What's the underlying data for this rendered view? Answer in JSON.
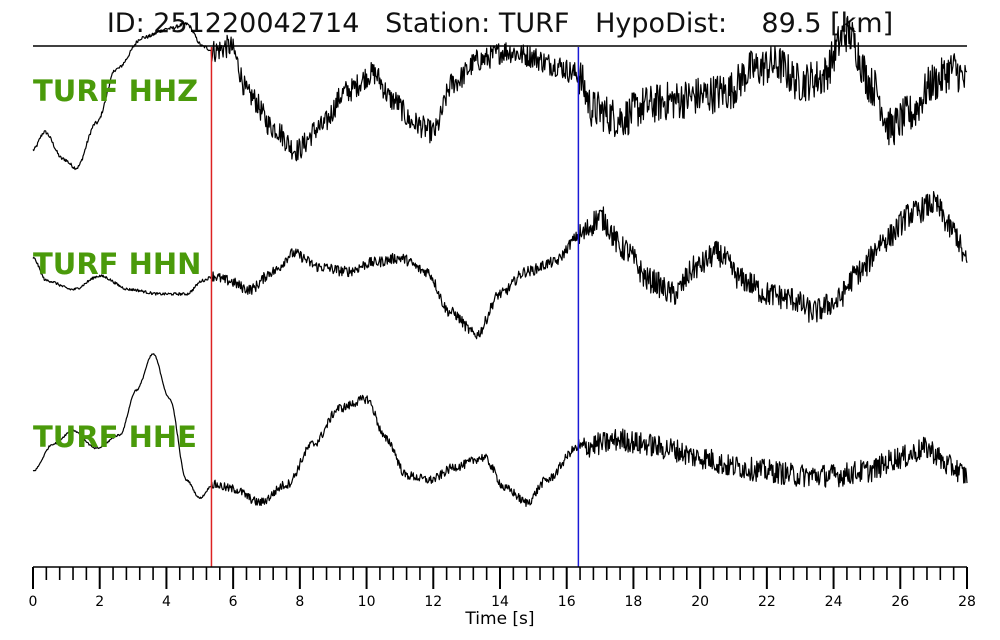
{
  "title": "ID: 251220042714   Station: TURF   HypoDist:    89.5 [km]",
  "colors": {
    "trace": "#000000",
    "p_pick": "#dd2222",
    "s_pick": "#1a1ad6",
    "label": "#4a9a0a"
  },
  "chart_data": {
    "type": "line",
    "title": "ID: 251220042714   Station: TURF   HypoDist:    89.5 [km]",
    "xlabel": "Time [s]",
    "ylabel": "",
    "xlim": [
      0,
      28
    ],
    "xticks": [
      0,
      2,
      4,
      6,
      8,
      10,
      12,
      14,
      16,
      18,
      20,
      22,
      24,
      26,
      28
    ],
    "minor_tick_step": 0.4,
    "grid": false,
    "picks": [
      {
        "time": 5.35,
        "color": "#dd2222"
      },
      {
        "time": 16.35,
        "color": "#1a1ad6"
      }
    ],
    "series": [
      {
        "name": "TURF HHZ",
        "noise_before": 0.02,
        "noise_after_p": 0.13,
        "noise_after_s": 0.22,
        "points": [
          [
            0,
            0.0
          ],
          [
            0.35,
            0.2
          ],
          [
            0.9,
            -0.1
          ],
          [
            1.3,
            -0.2
          ],
          [
            1.9,
            0.3
          ],
          [
            2.5,
            0.9
          ],
          [
            3.3,
            1.25
          ],
          [
            4.1,
            1.35
          ],
          [
            4.6,
            1.4
          ],
          [
            5.1,
            1.15
          ],
          [
            5.4,
            1.1
          ],
          [
            5.9,
            1.15
          ],
          [
            6.5,
            0.6
          ],
          [
            7.2,
            0.25
          ],
          [
            7.9,
            0.0
          ],
          [
            8.6,
            0.25
          ],
          [
            9.4,
            0.65
          ],
          [
            10.2,
            0.85
          ],
          [
            10.8,
            0.55
          ],
          [
            11.4,
            0.3
          ],
          [
            12.0,
            0.2
          ],
          [
            12.6,
            0.75
          ],
          [
            13.4,
            1.0
          ],
          [
            14.2,
            1.1
          ],
          [
            14.8,
            1.05
          ],
          [
            15.6,
            0.95
          ],
          [
            16.3,
            0.85
          ],
          [
            16.8,
            0.45
          ],
          [
            17.6,
            0.35
          ],
          [
            18.4,
            0.5
          ],
          [
            19.2,
            0.55
          ],
          [
            20.0,
            0.6
          ],
          [
            20.8,
            0.65
          ],
          [
            21.6,
            0.9
          ],
          [
            22.3,
            0.95
          ],
          [
            23.0,
            0.75
          ],
          [
            23.6,
            0.8
          ],
          [
            24.4,
            1.3
          ],
          [
            25.2,
            0.7
          ],
          [
            25.7,
            0.25
          ],
          [
            26.3,
            0.4
          ],
          [
            27.0,
            0.75
          ],
          [
            27.6,
            0.9
          ],
          [
            28.0,
            0.75
          ]
        ]
      },
      {
        "name": "TURF HHN",
        "noise_before": 0.015,
        "noise_after_p": 0.06,
        "noise_after_s": 0.14,
        "points": [
          [
            0,
            0.3
          ],
          [
            0.4,
            0.05
          ],
          [
            1.2,
            -0.05
          ],
          [
            2.0,
            0.1
          ],
          [
            2.9,
            -0.05
          ],
          [
            3.8,
            -0.1
          ],
          [
            4.6,
            -0.1
          ],
          [
            5.1,
            0.05
          ],
          [
            5.4,
            0.1
          ],
          [
            5.8,
            0.05
          ],
          [
            6.5,
            -0.05
          ],
          [
            7.2,
            0.15
          ],
          [
            7.8,
            0.35
          ],
          [
            8.6,
            0.2
          ],
          [
            9.4,
            0.15
          ],
          [
            10.2,
            0.25
          ],
          [
            11.0,
            0.3
          ],
          [
            11.8,
            0.15
          ],
          [
            12.5,
            -0.3
          ],
          [
            13.3,
            -0.55
          ],
          [
            14.0,
            -0.1
          ],
          [
            14.8,
            0.15
          ],
          [
            15.6,
            0.25
          ],
          [
            16.4,
            0.55
          ],
          [
            17.0,
            0.75
          ],
          [
            17.7,
            0.4
          ],
          [
            18.5,
            0.05
          ],
          [
            19.2,
            -0.1
          ],
          [
            19.9,
            0.2
          ],
          [
            20.5,
            0.35
          ],
          [
            21.3,
            0.05
          ],
          [
            22.0,
            -0.1
          ],
          [
            22.7,
            -0.15
          ],
          [
            23.4,
            -0.3
          ],
          [
            24.0,
            -0.2
          ],
          [
            24.8,
            0.15
          ],
          [
            25.5,
            0.5
          ],
          [
            26.4,
            0.8
          ],
          [
            27.0,
            0.9
          ],
          [
            27.6,
            0.6
          ],
          [
            28.0,
            0.25
          ]
        ]
      },
      {
        "name": "TURF HHE",
        "noise_before": 0.01,
        "noise_after_p": 0.05,
        "noise_after_s": 0.13,
        "points": [
          [
            0,
            0.1
          ],
          [
            0.6,
            0.4
          ],
          [
            1.2,
            0.55
          ],
          [
            1.9,
            0.35
          ],
          [
            2.6,
            0.5
          ],
          [
            3.1,
            1.0
          ],
          [
            3.6,
            1.4
          ],
          [
            4.1,
            0.9
          ],
          [
            4.6,
            0.0
          ],
          [
            5.0,
            -0.2
          ],
          [
            5.4,
            -0.05
          ],
          [
            6.0,
            -0.1
          ],
          [
            6.8,
            -0.25
          ],
          [
            7.6,
            -0.05
          ],
          [
            8.4,
            0.4
          ],
          [
            9.2,
            0.8
          ],
          [
            10.0,
            0.9
          ],
          [
            10.6,
            0.45
          ],
          [
            11.2,
            0.05
          ],
          [
            11.9,
            0.0
          ],
          [
            12.7,
            0.15
          ],
          [
            13.5,
            0.25
          ],
          [
            14.2,
            -0.1
          ],
          [
            14.8,
            -0.25
          ],
          [
            15.4,
            0.0
          ],
          [
            16.3,
            0.35
          ],
          [
            17.0,
            0.4
          ],
          [
            17.6,
            0.45
          ],
          [
            18.3,
            0.4
          ],
          [
            19.0,
            0.35
          ],
          [
            20.0,
            0.25
          ],
          [
            21.0,
            0.15
          ],
          [
            22.0,
            0.1
          ],
          [
            23.0,
            0.05
          ],
          [
            24.0,
            0.05
          ],
          [
            25.0,
            0.1
          ],
          [
            26.0,
            0.25
          ],
          [
            26.8,
            0.35
          ],
          [
            27.5,
            0.15
          ],
          [
            28.0,
            0.05
          ]
        ]
      }
    ]
  }
}
